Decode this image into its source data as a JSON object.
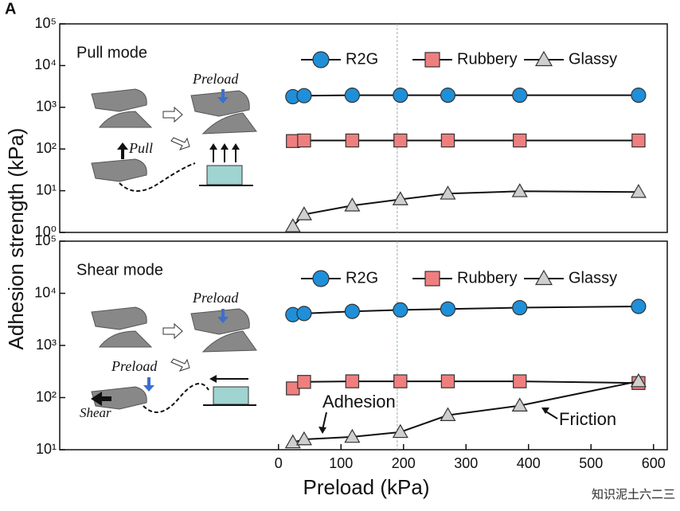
{
  "panel_label": "A",
  "ylabel": "Adhesion strength (kPa)",
  "xlabel": "Preload (kPa)",
  "watermark": "知识泥土六二三",
  "chart_data": [
    {
      "type": "line",
      "log_y": true,
      "annotations": [
        "Pull mode",
        "Preload",
        "Pull"
      ],
      "x": [
        23,
        41,
        118,
        195,
        271,
        386,
        576
      ],
      "xlim": [
        -350,
        622
      ],
      "reference_x": 190,
      "ylim": [
        1,
        100000
      ],
      "yticks": [
        {
          "value": 1,
          "label": "10⁰"
        },
        {
          "value": 10,
          "label": "10¹"
        },
        {
          "value": 100,
          "label": "10²"
        },
        {
          "value": 1000,
          "label": "10³"
        },
        {
          "value": 10000,
          "label": "10⁴"
        },
        {
          "value": 100000,
          "label": "10⁵"
        }
      ],
      "series": [
        {
          "name": "R2G",
          "color": "#1f8fd8",
          "marker": "circle",
          "values": [
            1800,
            1900,
            1950,
            1950,
            1950,
            1950,
            1950
          ]
        },
        {
          "name": "Rubbery",
          "color": "#ef7f7f",
          "marker": "square",
          "values": [
            155,
            160,
            160,
            160,
            160,
            160,
            160
          ]
        },
        {
          "name": "Glassy",
          "color": "#cfcfcf",
          "marker": "triangle",
          "values": [
            1.4,
            2.7,
            4.4,
            6.2,
            8.5,
            9.7,
            9.3
          ]
        }
      ]
    },
    {
      "type": "line",
      "log_y": true,
      "annotations": [
        "Shear mode",
        "Preload",
        "Preload",
        "Shear",
        "Adhesion",
        "Friction"
      ],
      "x": [
        23,
        41,
        118,
        195,
        271,
        386,
        576
      ],
      "xlim": [
        -350,
        622
      ],
      "reference_x": 190,
      "xticks": [
        0,
        100,
        200,
        300,
        400,
        500,
        600
      ],
      "ylim": [
        10,
        100000
      ],
      "yticks": [
        {
          "value": 10,
          "label": "10¹"
        },
        {
          "value": 100,
          "label": "10²"
        },
        {
          "value": 1000,
          "label": "10³"
        },
        {
          "value": 10000,
          "label": "10⁴"
        },
        {
          "value": 100000,
          "label": "10⁵"
        }
      ],
      "series": [
        {
          "name": "R2G",
          "color": "#1f8fd8",
          "marker": "circle",
          "values": [
            3900,
            4100,
            4500,
            4800,
            5000,
            5300,
            5600
          ]
        },
        {
          "name": "Rubbery",
          "color": "#ef7f7f",
          "marker": "square",
          "values": [
            150,
            200,
            205,
            205,
            205,
            205,
            190
          ]
        },
        {
          "name": "Glassy",
          "color": "#cfcfcf",
          "marker": "triangle",
          "values": [
            13.8,
            15.8,
            17.6,
            21.8,
            45.9,
            70,
            205
          ]
        }
      ]
    }
  ]
}
